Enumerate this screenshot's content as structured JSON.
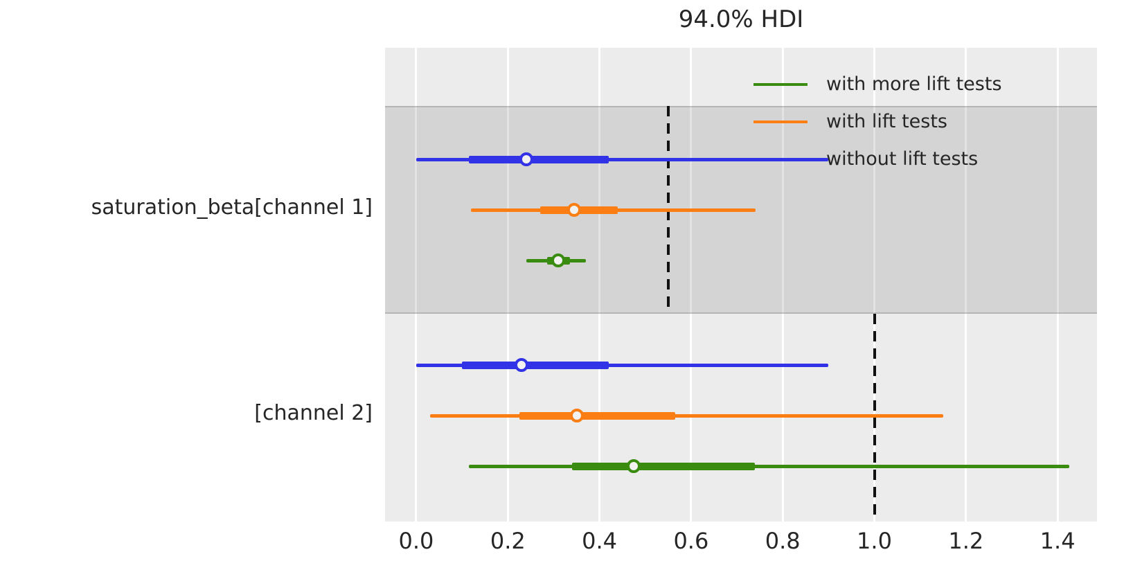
{
  "chart_data": {
    "type": "forest",
    "title": "94.0% HDI",
    "xlabel": "",
    "xlim": [
      -0.068,
      1.486
    ],
    "x_ticks": [
      "0.0",
      "0.2",
      "0.4",
      "0.6",
      "0.8",
      "1.0",
      "1.2",
      "1.4"
    ],
    "x_tick_values": [
      0.0,
      0.2,
      0.4,
      0.6,
      0.8,
      1.0,
      1.2,
      1.4
    ],
    "grid": "vertical white gridlines on light gray background",
    "legend": {
      "position": "upper right",
      "entries": [
        {
          "label": "with more lift tests",
          "color": "#3a8c10"
        },
        {
          "label": "with lift tests",
          "color": "#fb7e14"
        },
        {
          "label": "without lift tests",
          "color": "#3232e6"
        }
      ]
    },
    "groups": [
      {
        "label": "saturation_beta[channel 1]",
        "highlighted": true,
        "reference_line_x": 0.55,
        "rows": [
          {
            "series": "without lift tests",
            "color": "#3232e6",
            "hdi_outer": [
              0.0,
              0.9
            ],
            "hdi_inner": [
              0.115,
              0.42
            ],
            "point": 0.24
          },
          {
            "series": "with lift tests",
            "color": "#fb7e14",
            "hdi_outer": [
              0.12,
              0.74
            ],
            "hdi_inner": [
              0.27,
              0.44
            ],
            "point": 0.345
          },
          {
            "series": "with more lift tests",
            "color": "#3a8c10",
            "hdi_outer": [
              0.24,
              0.37
            ],
            "hdi_inner": [
              0.285,
              0.335
            ],
            "point": 0.31
          }
        ]
      },
      {
        "label": "[channel 2]",
        "highlighted": false,
        "reference_line_x": 1.0,
        "rows": [
          {
            "series": "without lift tests",
            "color": "#3232e6",
            "hdi_outer": [
              0.0,
              0.9
            ],
            "hdi_inner": [
              0.1,
              0.42
            ],
            "point": 0.23
          },
          {
            "series": "with lift tests",
            "color": "#fb7e14",
            "hdi_outer": [
              0.03,
              1.15
            ],
            "hdi_inner": [
              0.225,
              0.565
            ],
            "point": 0.35
          },
          {
            "series": "with more lift tests",
            "color": "#3a8c10",
            "hdi_outer": [
              0.115,
              1.425
            ],
            "hdi_inner": [
              0.34,
              0.74
            ],
            "point": 0.475
          }
        ]
      }
    ],
    "colors": {
      "plot_background": "#ececec",
      "highlight_band": "#d5d5d5",
      "reference_line": "#111111",
      "text": "#262626",
      "marker_fill": "#f2f2f2"
    }
  }
}
